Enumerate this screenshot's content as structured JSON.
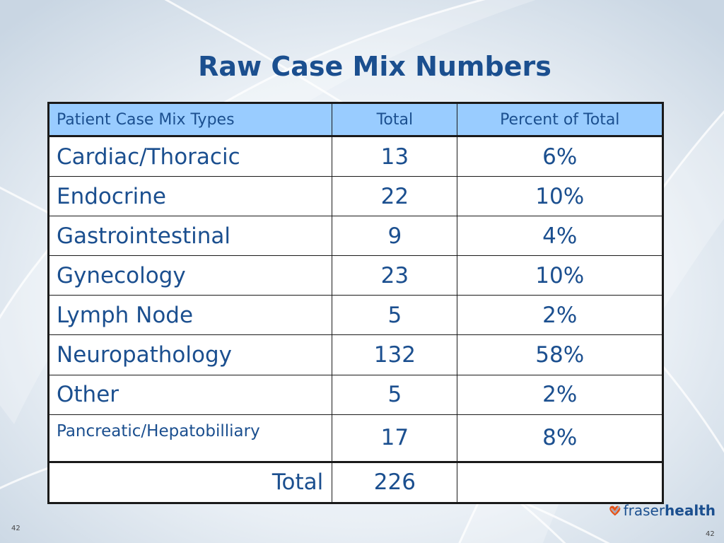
{
  "slide": {
    "title": "Raw Case Mix Numbers",
    "page_number_left": "42",
    "page_number_right": "42"
  },
  "table": {
    "headers": [
      "Patient Case Mix Types",
      "Total",
      "Percent of Total"
    ],
    "rows": [
      {
        "type": "Cardiac/Thoracic",
        "total": "13",
        "percent": "6%"
      },
      {
        "type": "Endocrine",
        "total": "22",
        "percent": "10%"
      },
      {
        "type": "Gastrointestinal",
        "total": "9",
        "percent": "4%"
      },
      {
        "type": "Gynecology",
        "total": "23",
        "percent": "10%"
      },
      {
        "type": "Lymph Node",
        "total": "5",
        "percent": "2%"
      },
      {
        "type": "Neuropathology",
        "total": "132",
        "percent": "58%"
      },
      {
        "type": "Other",
        "total": "5",
        "percent": "2%"
      },
      {
        "type": "Pancreatic/Hepatobilliary",
        "total": "17",
        "percent": "8%"
      }
    ],
    "total_row": {
      "label": "Total",
      "total": "226",
      "percent": ""
    }
  },
  "logo": {
    "name_light": "fraser",
    "name_bold": "health",
    "icon": "heart-logo-icon"
  },
  "colors": {
    "title": "#1b4f8f",
    "header_fill": "#99ccff",
    "text": "#1b4f8f",
    "logo_accent": "#e0561f"
  }
}
